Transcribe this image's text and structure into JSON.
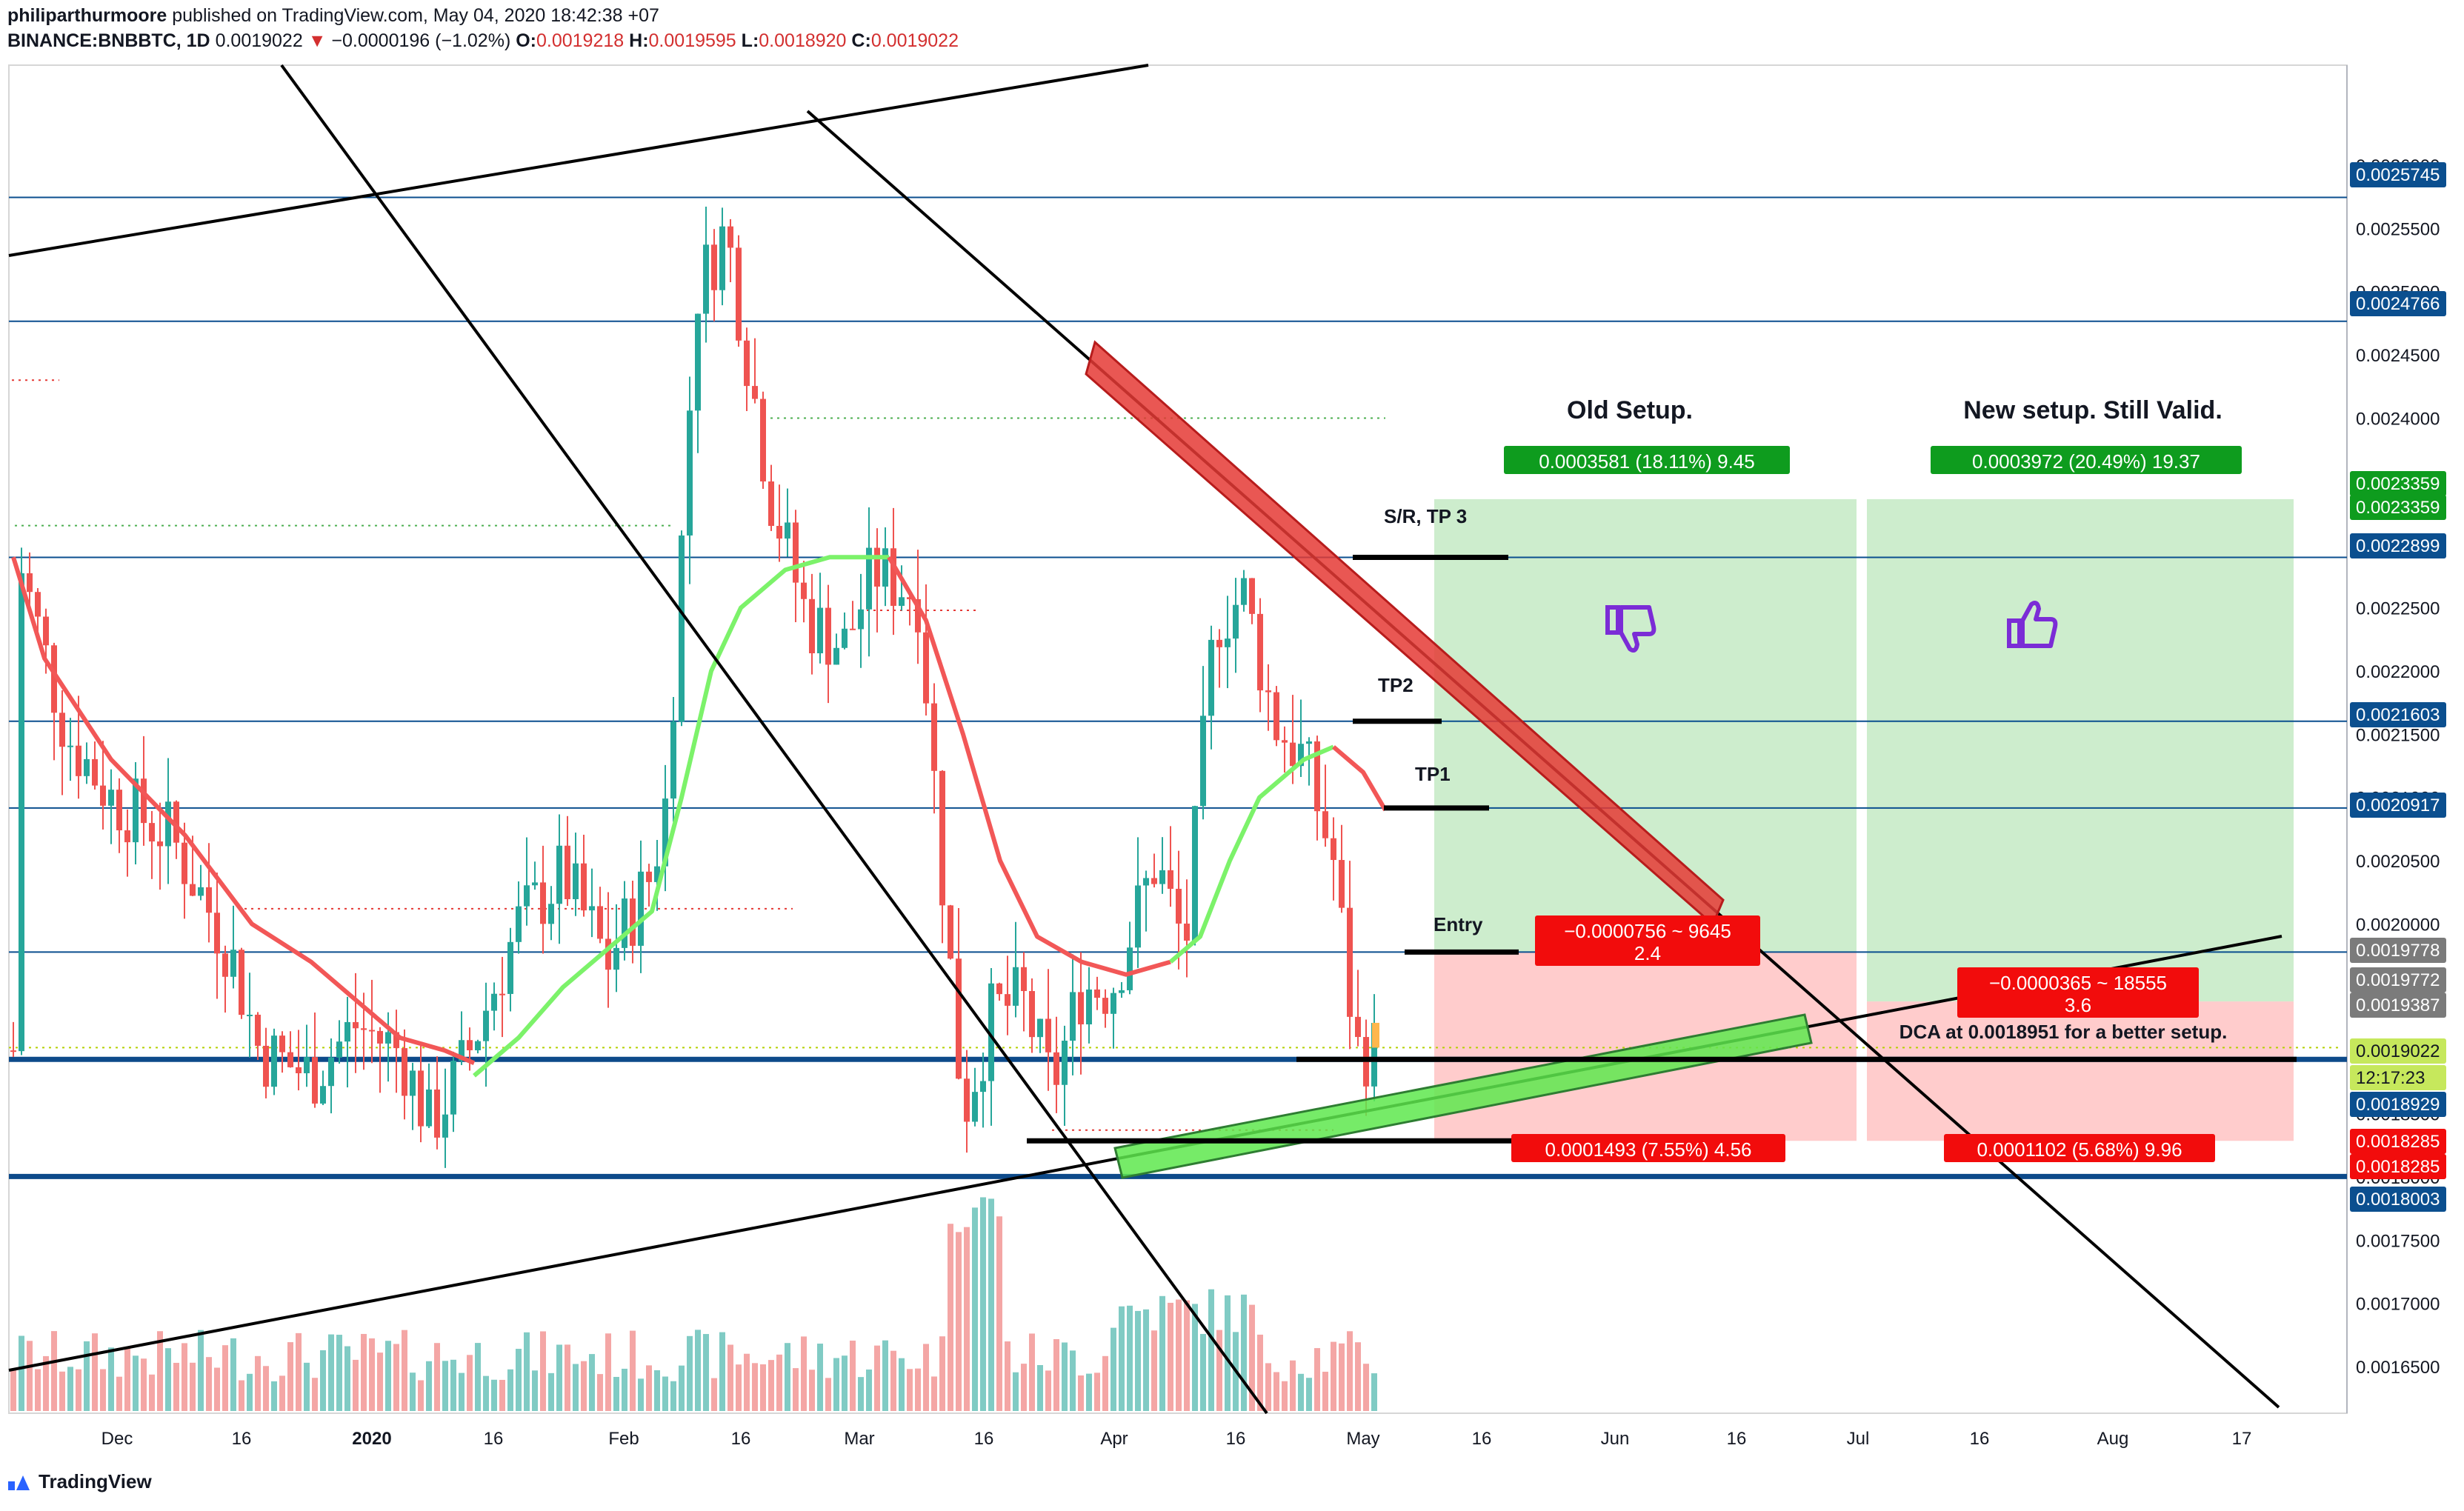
{
  "header": {
    "user": "philiparthurmoore",
    "published": "published on TradingView.com, May 04, 2020 18:42:38 +07",
    "symbol": "BINANCE:BNBBTC, 1D",
    "last": "0.0019022",
    "change": "−0.0000196 (−1.02%)",
    "o_label": "O:",
    "o": "0.0019218",
    "h_label": "H:",
    "h": "0.0019595",
    "l_label": "L:",
    "l": "0.0018920",
    "c_label": "C:",
    "c": "0.0019022"
  },
  "footer": {
    "brand": "TradingView"
  },
  "colors": {
    "up": "#26a69a",
    "down": "#ef5350",
    "vol_up": "#80cbc4",
    "vol_down": "#f4a6a5",
    "ma_red": "#f25757",
    "ma_green": "#7cf26a",
    "hline": "#0b4f8f",
    "axis_badge": "#0b4f8f",
    "profit": "#c8ebc8",
    "loss": "#ffc6c6",
    "label_green": "#0e9c1e",
    "label_red": "#f20c0c",
    "thumb": "#7b2cd6"
  },
  "chart_data": {
    "type": "candlestick",
    "interval": "1D",
    "yaxis": {
      "ticks": [
        "0.0026000",
        "0.0025500",
        "0.0025000",
        "0.0024500",
        "0.0024000",
        "0.0023500",
        "0.0023000",
        "0.0022500",
        "0.0022000",
        "0.0021500",
        "0.0021000",
        "0.0020500",
        "0.0020000",
        "0.0019500",
        "0.0019000",
        "0.0018500",
        "0.0018000",
        "0.0017500",
        "0.0017000",
        "0.0016500"
      ],
      "range": [
        0.001618,
        0.002655
      ]
    },
    "xaxis": {
      "ticks": [
        "Dec",
        "16",
        "2020",
        "16",
        "Feb",
        "16",
        "Mar",
        "16",
        "Apr",
        "16",
        "May",
        "16",
        "Jun",
        "16",
        "Jul",
        "16",
        "Aug",
        "17"
      ]
    },
    "price_badges": [
      {
        "value": "0.0025745",
        "style": "blue"
      },
      {
        "value": "0.0024766",
        "style": "blue"
      },
      {
        "value": "0.0023359",
        "style": "green"
      },
      {
        "value": "0.0023359",
        "style": "green"
      },
      {
        "value": "0.0022899",
        "style": "blue"
      },
      {
        "value": "0.0021603",
        "style": "blue"
      },
      {
        "value": "0.0020917",
        "style": "blue"
      },
      {
        "value": "0.0019778",
        "style": "grey"
      },
      {
        "value": "0.0019772",
        "style": "grey"
      },
      {
        "value": "0.0019387",
        "style": "grey"
      },
      {
        "value": "0.0019022",
        "style": "lime"
      },
      {
        "value": "12:17:23",
        "style": "lime"
      },
      {
        "value": "0.0018929",
        "style": "blue"
      },
      {
        "value": "0.0018285",
        "style": "red"
      },
      {
        "value": "0.0018285",
        "style": "red"
      },
      {
        "value": "0.0018003",
        "style": "blue"
      }
    ],
    "horizontal_levels": [
      0.0025745,
      0.0024766,
      0.0022899,
      0.0021603,
      0.0020917,
      0.0019778
    ],
    "thick_levels": [
      0.0018929,
      0.0018003
    ],
    "annotations": {
      "old_setup": "Old Setup.",
      "new_setup": "New setup. Still Valid.",
      "old_profit": "0.0003581 (18.11%) 9.45",
      "new_profit": "0.0003972 (20.49%) 19.37",
      "old_loss_1": "−0.0000756 ~ 9645",
      "old_loss_2": "2.4",
      "new_loss_1": "−0.0000365 ~ 18555",
      "new_loss_2": "3.6",
      "old_stop": "0.0001493 (7.55%) 4.56",
      "new_stop": "0.0001102 (5.68%) 9.96",
      "sr_tp3": "S/R, TP 3",
      "tp2": "TP2",
      "tp1": "TP1",
      "entry": "Entry",
      "dca": "DCA at 0.0018951 for a better setup."
    }
  }
}
